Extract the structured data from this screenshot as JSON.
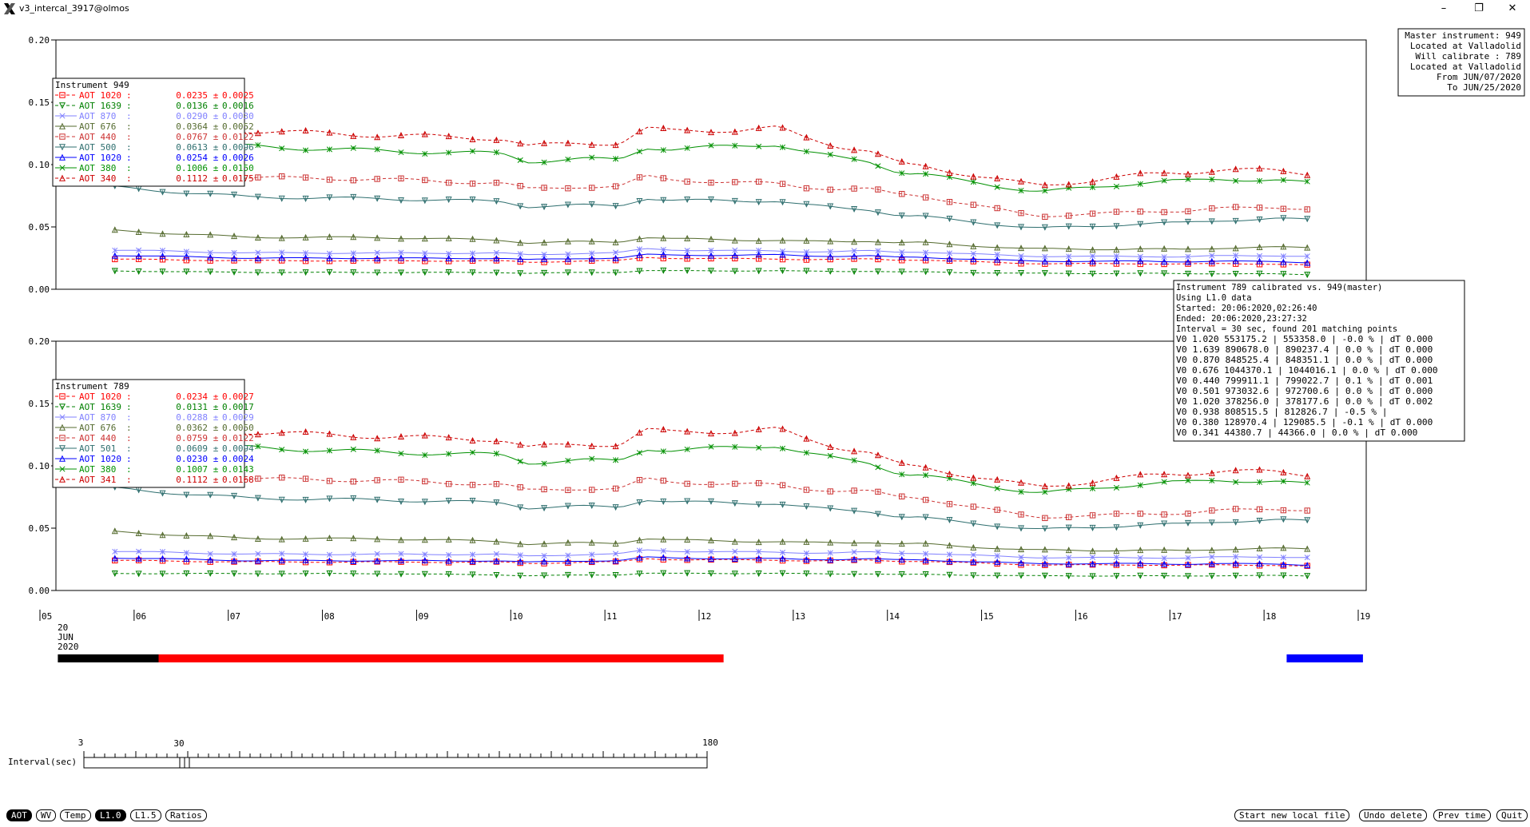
{
  "window": {
    "title": "v3_intercal_3917@olmos",
    "minimize": "–",
    "restore": "❐",
    "close": "✕"
  },
  "master_info": [
    "Master instrument: 949",
    "Located at Valladolid",
    "Will calibrate   : 789",
    "Located at Valladolid",
    "From JUN/07/2020",
    "To JUN/25/2020"
  ],
  "calibration_info": [
    "Instrument 789 calibrated vs. 949(master)",
    "Using L1.0 data",
    "Started: 20:06:2020,02:26:40",
    "Ended: 20:06:2020,23:27:32",
    "Interval = 30 sec, found 201 matching points",
    "V0 1.020   553175.2 | 553358.0 |  -0.0 % | dT 0.000",
    "V0 1.639   890678.0 | 890237.4 |   0.0 % | dT 0.000",
    "V0 0.870   848525.4 | 848351.1 |   0.0 % | dT 0.000",
    "V0 0.676   1044370.1 | 1044016.1 |  0.0 % | dT 0.000",
    "V0 0.440   799911.1 | 799022.7 |   0.1 % | dT 0.001",
    "V0 0.501   973032.6 | 972700.6 |   0.0 % | dT 0.000",
    "V0 1.020   378256.0 | 378177.6 |   0.0 % | dT 0.002",
    "V0 0.938   808515.5 | 812826.7 |  -0.5 % |",
    "V0 0.380   128970.4 | 129085.5 |  -0.1 % | dT 0.000",
    "V0 0.341   44380.7 | 44366.0 |  0.0 % | dT 0.000"
  ],
  "chart_data": [
    {
      "type": "line",
      "legend_title": "Instrument 949",
      "legend_position": "top-left",
      "ylim": [
        0,
        0.2
      ],
      "yticks": [
        "0.00",
        "0.05",
        "0.10",
        "0.15",
        "0.20"
      ],
      "xlim": [
        5,
        19
      ],
      "series": [
        {
          "name": "AOT 1020",
          "mean": "0.0235",
          "std": "0.0025",
          "color": "#ff0000",
          "marker": "square",
          "dashed": true,
          "values": [
            0.023,
            0.022,
            0.022,
            0.022,
            0.022,
            0.023,
            0.022,
            0.021,
            0.021,
            0.02
          ]
        },
        {
          "name": "AOT 1639",
          "mean": "0.0136",
          "std": "0.0016",
          "color": "#008000",
          "marker": "down-triangle",
          "dashed": true,
          "values": [
            0.014,
            0.013,
            0.013,
            0.013,
            0.013,
            0.014,
            0.013,
            0.013,
            0.013,
            0.012
          ]
        },
        {
          "name": "AOT 870",
          "mean": "0.0290",
          "std": "0.0030",
          "color": "#8080ff",
          "marker": "x",
          "dashed": false,
          "values": [
            0.03,
            0.028,
            0.028,
            0.028,
            0.028,
            0.029,
            0.028,
            0.027,
            0.027,
            0.027
          ]
        },
        {
          "name": "AOT 676",
          "mean": "0.0364",
          "std": "0.0052",
          "color": "#556b2f",
          "marker": "up-triangle",
          "dashed": false,
          "values": [
            0.045,
            0.04,
            0.04,
            0.038,
            0.036,
            0.037,
            0.035,
            0.033,
            0.033,
            0.034
          ]
        },
        {
          "name": "AOT 440",
          "mean": "0.0767",
          "std": "0.0122",
          "color": "#cc3333",
          "marker": "square",
          "dashed": true,
          "values": [
            0.09,
            0.086,
            0.085,
            0.082,
            0.078,
            0.08,
            0.071,
            0.06,
            0.065,
            0.066
          ]
        },
        {
          "name": "AOT 500",
          "mean": "0.0613",
          "std": "0.0096",
          "color": "#2f6f6f",
          "marker": "down-triangle",
          "dashed": false,
          "values": [
            0.078,
            0.071,
            0.07,
            0.068,
            0.063,
            0.067,
            0.055,
            0.05,
            0.055,
            0.057
          ]
        },
        {
          "name": "AOT 1020",
          "mean": "0.0254",
          "std": "0.0026",
          "color": "#0000ff",
          "marker": "up-triangle",
          "dashed": false,
          "values": [
            0.026,
            0.024,
            0.024,
            0.024,
            0.024,
            0.026,
            0.024,
            0.023,
            0.023,
            0.022
          ]
        },
        {
          "name": "AOT 380",
          "mean": "0.1006",
          "std": "0.0150",
          "color": "#009000",
          "marker": "x",
          "dashed": false,
          "values": [
            0.111,
            0.11,
            0.107,
            0.105,
            0.098,
            0.11,
            0.087,
            0.08,
            0.09,
            0.087
          ]
        },
        {
          "name": "AOT 340",
          "mean": "0.1112",
          "std": "0.0175",
          "color": "#cc0000",
          "marker": "up-triangle",
          "dashed": true,
          "values": [
            0.125,
            0.122,
            0.119,
            0.117,
            0.111,
            0.122,
            0.093,
            0.085,
            0.097,
            0.095
          ]
        }
      ]
    },
    {
      "type": "line",
      "legend_title": "Instrument 789",
      "legend_position": "top-left",
      "ylim": [
        0,
        0.2
      ],
      "yticks": [
        "0.00",
        "0.05",
        "0.10",
        "0.15",
        "0.20"
      ],
      "xlim": [
        5,
        19
      ],
      "series": [
        {
          "name": "AOT 1020",
          "mean": "0.0234",
          "std": "0.0027",
          "color": "#ff0000",
          "marker": "square",
          "dashed": true,
          "values": [
            0.023,
            0.022,
            0.022,
            0.022,
            0.022,
            0.023,
            0.022,
            0.021,
            0.021,
            0.02
          ]
        },
        {
          "name": "AOT 1639",
          "mean": "0.0131",
          "std": "0.0017",
          "color": "#008000",
          "marker": "down-triangle",
          "dashed": true,
          "values": [
            0.013,
            0.013,
            0.013,
            0.012,
            0.012,
            0.013,
            0.012,
            0.012,
            0.012,
            0.012
          ]
        },
        {
          "name": "AOT 870",
          "mean": "0.0288",
          "std": "0.0029",
          "color": "#8080ff",
          "marker": "x",
          "dashed": false,
          "values": [
            0.03,
            0.028,
            0.028,
            0.028,
            0.028,
            0.029,
            0.028,
            0.027,
            0.027,
            0.027
          ]
        },
        {
          "name": "AOT 676",
          "mean": "0.0362",
          "std": "0.0050",
          "color": "#556b2f",
          "marker": "up-triangle",
          "dashed": false,
          "values": [
            0.045,
            0.04,
            0.04,
            0.038,
            0.036,
            0.037,
            0.035,
            0.033,
            0.033,
            0.034
          ]
        },
        {
          "name": "AOT 440",
          "mean": "0.0759",
          "std": "0.0122",
          "color": "#cc3333",
          "marker": "square",
          "dashed": true,
          "values": [
            0.09,
            0.086,
            0.085,
            0.082,
            0.077,
            0.08,
            0.07,
            0.06,
            0.064,
            0.066
          ]
        },
        {
          "name": "AOT 501",
          "mean": "0.0609",
          "std": "0.0094",
          "color": "#2f6f6f",
          "marker": "down-triangle",
          "dashed": false,
          "values": [
            0.078,
            0.071,
            0.07,
            0.068,
            0.063,
            0.066,
            0.055,
            0.05,
            0.055,
            0.057
          ]
        },
        {
          "name": "AOT 1020",
          "mean": "0.0230",
          "std": "0.0024",
          "color": "#0000ff",
          "marker": "up-triangle",
          "dashed": false,
          "values": [
            0.025,
            0.023,
            0.023,
            0.023,
            0.023,
            0.024,
            0.023,
            0.022,
            0.022,
            0.021
          ]
        },
        {
          "name": "AOT 380",
          "mean": "0.1007",
          "std": "0.0143",
          "color": "#009000",
          "marker": "x",
          "dashed": false,
          "values": [
            0.111,
            0.11,
            0.107,
            0.105,
            0.098,
            0.11,
            0.087,
            0.08,
            0.09,
            0.087
          ]
        },
        {
          "name": "AOT 341",
          "mean": "0.1112",
          "std": "0.0168",
          "color": "#cc0000",
          "marker": "up-triangle",
          "dashed": true,
          "values": [
            0.125,
            0.122,
            0.119,
            0.117,
            0.111,
            0.122,
            0.093,
            0.085,
            0.097,
            0.095
          ]
        }
      ]
    }
  ],
  "time_axis": {
    "range": [
      5,
      19
    ],
    "ticks": [
      "05",
      "06",
      "07",
      "08",
      "09",
      "10",
      "11",
      "12",
      "13",
      "14",
      "15",
      "16",
      "17",
      "18",
      "19"
    ],
    "date_label": [
      "20",
      "JUN",
      "2020"
    ]
  },
  "data_bars": [
    {
      "start": 5.19,
      "end": 6.26,
      "color": "#000000"
    },
    {
      "start": 6.26,
      "end": 12.26,
      "color": "#ff0000"
    },
    {
      "start": 18.24,
      "end": 19.05,
      "color": "#0000ff"
    }
  ],
  "slider": {
    "label": "Interval(sec)",
    "min_label": "3",
    "mid_label": "30",
    "max_label": "180",
    "value": 30
  },
  "buttons_left": [
    {
      "label": "AOT",
      "active": true
    },
    {
      "label": "WV",
      "active": false
    },
    {
      "label": "Temp",
      "active": false
    },
    {
      "label": "L1.0",
      "active": true
    },
    {
      "label": "L1.5",
      "active": false
    },
    {
      "label": "Ratios",
      "active": false
    }
  ],
  "buttons_right": [
    {
      "label": "Start new local file"
    },
    {
      "label": "Undo delete"
    },
    {
      "label": "Prev time"
    },
    {
      "label": "Quit"
    }
  ]
}
